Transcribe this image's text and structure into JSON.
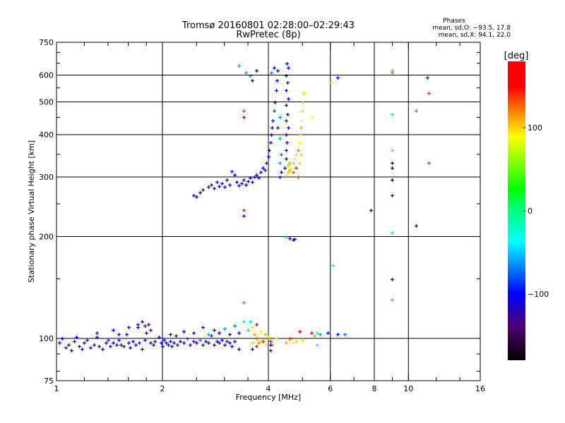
{
  "chart_data": {
    "type": "scatter",
    "title": "Tromsø 20160801 02:28:00–02:29:43",
    "subtitle": "RwPretec (8p)",
    "xlabel": "Frequency [MHz]",
    "ylabel": "Stationary phase Virtual Height [km]",
    "xscale": "log",
    "yscale": "log",
    "xlim": [
      1,
      16
    ],
    "ylim": [
      75,
      750
    ],
    "xticks": [
      1,
      2,
      4,
      6,
      8,
      10,
      16
    ],
    "xticklabels": [
      "1",
      "2",
      "4",
      "6",
      "8",
      "10",
      "16"
    ],
    "xgrid": [
      2,
      4,
      6,
      8,
      10
    ],
    "yticks": [
      75,
      100,
      200,
      300,
      400,
      500,
      600,
      750
    ],
    "yticklabels": [
      "75",
      "100",
      "200",
      "300",
      "400",
      "500",
      "600",
      "750"
    ],
    "ygrid": [
      100,
      200,
      300,
      400,
      500,
      600
    ],
    "grid": true,
    "stats": {
      "heading": "Phases",
      "o_line": "mean, sd,O: −93.5, 17.8",
      "x_line": "mean, sd,X:  94.1, 22.0"
    },
    "colorbar": {
      "label": "[deg]",
      "range": [
        -180,
        180
      ],
      "ticks": [
        100,
        0,
        -100
      ],
      "ticklabels": [
        "100",
        "0",
        "−100"
      ],
      "colormap": [
        [
          -180,
          "#000000"
        ],
        [
          -140,
          "#500070"
        ],
        [
          -100,
          "#0000ff"
        ],
        [
          -37,
          "#00ffff"
        ],
        [
          0,
          "#00ff80"
        ],
        [
          26,
          "#00ff00"
        ],
        [
          89,
          "#ffff00"
        ],
        [
          120,
          "#ff8000"
        ],
        [
          150,
          "#ff0000"
        ],
        [
          180,
          "#ff0000"
        ]
      ]
    },
    "point_fields": [
      "frequency_MHz",
      "height_km",
      "phase_deg"
    ],
    "points": [
      [
        1.02,
        97,
        -110
      ],
      [
        1.04,
        100,
        -100
      ],
      [
        1.06,
        94,
        -120
      ],
      [
        1.08,
        96,
        -105
      ],
      [
        1.1,
        92,
        -110
      ],
      [
        1.12,
        98,
        -95
      ],
      [
        1.14,
        101,
        -100
      ],
      [
        1.16,
        95,
        -125
      ],
      [
        1.18,
        93,
        -110
      ],
      [
        1.2,
        97,
        -100
      ],
      [
        1.22,
        99,
        -95
      ],
      [
        1.25,
        94,
        -110
      ],
      [
        1.28,
        96,
        -120
      ],
      [
        1.3,
        101,
        -100
      ],
      [
        1.32,
        95,
        -105
      ],
      [
        1.35,
        93,
        -110
      ],
      [
        1.38,
        97,
        -100
      ],
      [
        1.4,
        99,
        -90
      ],
      [
        1.42,
        95,
        -115
      ],
      [
        1.45,
        97,
        -105
      ],
      [
        1.48,
        96,
        -100
      ],
      [
        1.5,
        99,
        -95
      ],
      [
        1.52,
        96,
        -130
      ],
      [
        1.55,
        95,
        -110
      ],
      [
        1.58,
        103,
        -100
      ],
      [
        1.6,
        97,
        -120
      ],
      [
        1.62,
        94,
        -105
      ],
      [
        1.65,
        98,
        -100
      ],
      [
        1.68,
        96,
        -110
      ],
      [
        1.7,
        108,
        -100
      ],
      [
        1.72,
        97,
        -95
      ],
      [
        1.75,
        93,
        -110
      ],
      [
        1.78,
        99,
        -100
      ],
      [
        1.8,
        104,
        -105
      ],
      [
        1.82,
        110,
        -120
      ],
      [
        1.85,
        97,
        -100
      ],
      [
        1.88,
        96,
        -110
      ],
      [
        1.9,
        98,
        -100
      ],
      [
        1.95,
        101,
        -95
      ],
      [
        1.98,
        97,
        -110
      ],
      [
        2.0,
        95,
        -105
      ],
      [
        2.02,
        99,
        -100
      ],
      [
        2.05,
        97,
        -115
      ],
      [
        2.08,
        96,
        -110
      ],
      [
        2.1,
        98,
        -100
      ],
      [
        2.12,
        95,
        -105
      ],
      [
        2.15,
        97,
        -100
      ],
      [
        2.18,
        102,
        -95
      ],
      [
        2.2,
        96,
        -110
      ],
      [
        2.25,
        98,
        -100
      ],
      [
        2.3,
        97,
        -105
      ],
      [
        2.35,
        100,
        -80
      ],
      [
        2.4,
        96,
        -110
      ],
      [
        2.45,
        98,
        -120
      ],
      [
        2.5,
        97,
        -100
      ],
      [
        2.55,
        99,
        -70
      ],
      [
        2.6,
        96,
        -110
      ],
      [
        2.65,
        98,
        -100
      ],
      [
        2.7,
        97,
        -105
      ],
      [
        2.75,
        102,
        -90
      ],
      [
        2.8,
        96,
        -110
      ],
      [
        2.85,
        98,
        -100
      ],
      [
        2.9,
        97,
        -115
      ],
      [
        2.95,
        99,
        -100
      ],
      [
        3.0,
        96,
        -110
      ],
      [
        3.05,
        98,
        -130
      ],
      [
        3.1,
        97,
        -100
      ],
      [
        3.15,
        95,
        -110
      ],
      [
        3.2,
        98,
        -120
      ],
      [
        1.3,
        104,
        -110
      ],
      [
        1.45,
        106,
        -100
      ],
      [
        1.5,
        103,
        -130
      ],
      [
        1.6,
        108,
        -110
      ],
      [
        1.7,
        110,
        -95
      ],
      [
        1.75,
        112,
        -100
      ],
      [
        1.78,
        109,
        -130
      ],
      [
        1.85,
        106,
        -110
      ],
      [
        2.1,
        103,
        -100
      ],
      [
        2.3,
        105,
        -110
      ],
      [
        2.45,
        104,
        -120
      ],
      [
        2.6,
        108,
        -110
      ],
      [
        2.7,
        103,
        -60
      ],
      [
        2.8,
        106,
        -130
      ],
      [
        2.9,
        104,
        -100
      ],
      [
        3.0,
        107,
        -60
      ],
      [
        3.1,
        103,
        -110
      ],
      [
        3.2,
        109,
        -70
      ],
      [
        3.3,
        104,
        -110
      ],
      [
        3.4,
        112,
        -40
      ],
      [
        3.4,
        128,
        -60
      ],
      [
        3.5,
        106,
        0
      ],
      [
        3.55,
        112,
        -20
      ],
      [
        3.6,
        108,
        100
      ],
      [
        3.65,
        103,
        110
      ],
      [
        3.7,
        110,
        150
      ],
      [
        3.7,
        100,
        130
      ],
      [
        3.75,
        97,
        120
      ],
      [
        3.8,
        105,
        80
      ],
      [
        3.85,
        98,
        140
      ],
      [
        3.9,
        103,
        110
      ],
      [
        3.95,
        96,
        100
      ],
      [
        4.0,
        101,
        90
      ],
      [
        4.05,
        98,
        150
      ],
      [
        4.1,
        96,
        120
      ],
      [
        4.2,
        100,
        80
      ],
      [
        3.6,
        97,
        100
      ],
      [
        3.7,
        95,
        150
      ],
      [
        3.8,
        99,
        90
      ],
      [
        4.5,
        97,
        110
      ],
      [
        4.6,
        100,
        140
      ],
      [
        4.7,
        97,
        80
      ],
      [
        4.8,
        98,
        100
      ],
      [
        4.9,
        105,
        150
      ],
      [
        5.0,
        99,
        100
      ],
      [
        5.3,
        104,
        160
      ],
      [
        5.4,
        102,
        50
      ],
      [
        5.5,
        104,
        -40
      ],
      [
        5.6,
        103,
        -60
      ],
      [
        5.5,
        96,
        -40
      ],
      [
        5.9,
        104,
        -110
      ],
      [
        6.3,
        103,
        -100
      ],
      [
        6.6,
        103,
        -70
      ],
      [
        4.05,
        96,
        -100
      ],
      [
        4.05,
        92,
        -110
      ],
      [
        3.6,
        93,
        -100
      ],
      [
        3.3,
        93,
        -110
      ],
      [
        2.45,
        265,
        -110
      ],
      [
        2.5,
        262,
        -100
      ],
      [
        2.55,
        270,
        -110
      ],
      [
        2.6,
        275,
        -120
      ],
      [
        2.7,
        280,
        -100
      ],
      [
        2.75,
        285,
        -110
      ],
      [
        2.8,
        278,
        -105
      ],
      [
        2.85,
        290,
        -100
      ],
      [
        2.9,
        282,
        -110
      ],
      [
        2.95,
        288,
        -130
      ],
      [
        3.0,
        280,
        -100
      ],
      [
        3.05,
        295,
        -110
      ],
      [
        3.1,
        285,
        -105
      ],
      [
        3.15,
        312,
        -110
      ],
      [
        3.2,
        305,
        -100
      ],
      [
        3.25,
        290,
        -110
      ],
      [
        3.3,
        283,
        -100
      ],
      [
        3.35,
        288,
        -120
      ],
      [
        3.4,
        295,
        -110
      ],
      [
        3.45,
        285,
        -100
      ],
      [
        3.5,
        292,
        -105
      ],
      [
        3.55,
        298,
        -110
      ],
      [
        3.6,
        290,
        -100
      ],
      [
        3.65,
        300,
        -110
      ],
      [
        3.7,
        305,
        -100
      ],
      [
        3.75,
        298,
        -120
      ],
      [
        3.8,
        310,
        -110
      ],
      [
        3.85,
        320,
        -100
      ],
      [
        3.9,
        315,
        -105
      ],
      [
        3.95,
        330,
        -110
      ],
      [
        4.0,
        345,
        -100
      ],
      [
        4.02,
        360,
        -110
      ],
      [
        4.05,
        380,
        -100
      ],
      [
        4.07,
        400,
        -105
      ],
      [
        4.1,
        420,
        -110
      ],
      [
        4.12,
        440,
        -100
      ],
      [
        4.15,
        470,
        -80
      ],
      [
        4.17,
        500,
        -110
      ],
      [
        4.2,
        540,
        -100
      ],
      [
        4.22,
        580,
        -110
      ],
      [
        4.25,
        620,
        -100
      ],
      [
        4.15,
        630,
        -110
      ],
      [
        4.08,
        610,
        -70
      ],
      [
        4.45,
        320,
        -100
      ],
      [
        4.5,
        340,
        -110
      ],
      [
        4.48,
        360,
        -100
      ],
      [
        4.52,
        380,
        -120
      ],
      [
        4.5,
        400,
        -110
      ],
      [
        4.55,
        420,
        -100
      ],
      [
        4.5,
        440,
        -110
      ],
      [
        4.53,
        460,
        -100
      ],
      [
        4.5,
        490,
        -110
      ],
      [
        4.55,
        510,
        -105
      ],
      [
        4.5,
        540,
        -100
      ],
      [
        4.53,
        570,
        -110
      ],
      [
        4.5,
        600,
        -120
      ],
      [
        4.55,
        630,
        -100
      ],
      [
        4.52,
        650,
        -110
      ],
      [
        4.3,
        330,
        -60
      ],
      [
        4.35,
        350,
        -70
      ],
      [
        4.3,
        390,
        -50
      ],
      [
        4.25,
        420,
        -110
      ],
      [
        4.3,
        450,
        -60
      ],
      [
        4.3,
        300,
        -110
      ],
      [
        4.35,
        310,
        -100
      ],
      [
        4.5,
        305,
        90
      ],
      [
        4.55,
        310,
        100
      ],
      [
        4.6,
        315,
        110
      ],
      [
        4.65,
        320,
        90
      ],
      [
        4.7,
        330,
        100
      ],
      [
        4.75,
        340,
        80
      ],
      [
        4.8,
        350,
        100
      ],
      [
        4.85,
        360,
        120
      ],
      [
        4.9,
        380,
        90
      ],
      [
        4.92,
        400,
        100
      ],
      [
        4.95,
        420,
        110
      ],
      [
        4.98,
        440,
        90
      ],
      [
        5.0,
        470,
        100
      ],
      [
        5.02,
        500,
        80
      ],
      [
        5.05,
        530,
        100
      ],
      [
        4.6,
        330,
        110
      ],
      [
        4.7,
        310,
        130
      ],
      [
        4.8,
        320,
        140
      ],
      [
        4.9,
        330,
        100
      ],
      [
        4.95,
        350,
        70
      ],
      [
        4.55,
        325,
        60
      ],
      [
        4.85,
        300,
        130
      ],
      [
        5.3,
        450,
        90
      ],
      [
        3.4,
        470,
        140
      ],
      [
        3.4,
        450,
        150
      ],
      [
        3.4,
        240,
        140
      ],
      [
        3.4,
        230,
        -110
      ],
      [
        3.45,
        610,
        -60
      ],
      [
        3.55,
        600,
        -70
      ],
      [
        3.6,
        580,
        -110
      ],
      [
        3.7,
        620,
        -100
      ],
      [
        3.3,
        640,
        -60
      ],
      [
        4.5,
        200,
        -40
      ],
      [
        4.6,
        198,
        -100
      ],
      [
        4.7,
        196,
        -110
      ],
      [
        4.75,
        197,
        -100
      ],
      [
        6.0,
        570,
        100
      ],
      [
        6.3,
        590,
        -100
      ],
      [
        7.8,
        240,
        -110
      ],
      [
        9.0,
        620,
        120
      ],
      [
        9.0,
        610,
        -60
      ],
      [
        9.0,
        460,
        -40
      ],
      [
        9.0,
        360,
        -30
      ],
      [
        9.0,
        330,
        -110
      ],
      [
        9.0,
        320,
        -170
      ],
      [
        9.0,
        295,
        -160
      ],
      [
        9.0,
        265,
        -110
      ],
      [
        9.0,
        205,
        -40
      ],
      [
        9.0,
        150,
        -100
      ],
      [
        9.0,
        130,
        120
      ],
      [
        10.5,
        470,
        130
      ],
      [
        10.5,
        215,
        -110
      ],
      [
        11.3,
        590,
        -90
      ],
      [
        11.4,
        530,
        140
      ],
      [
        11.4,
        330,
        140
      ],
      [
        6.1,
        165,
        -30
      ]
    ]
  }
}
